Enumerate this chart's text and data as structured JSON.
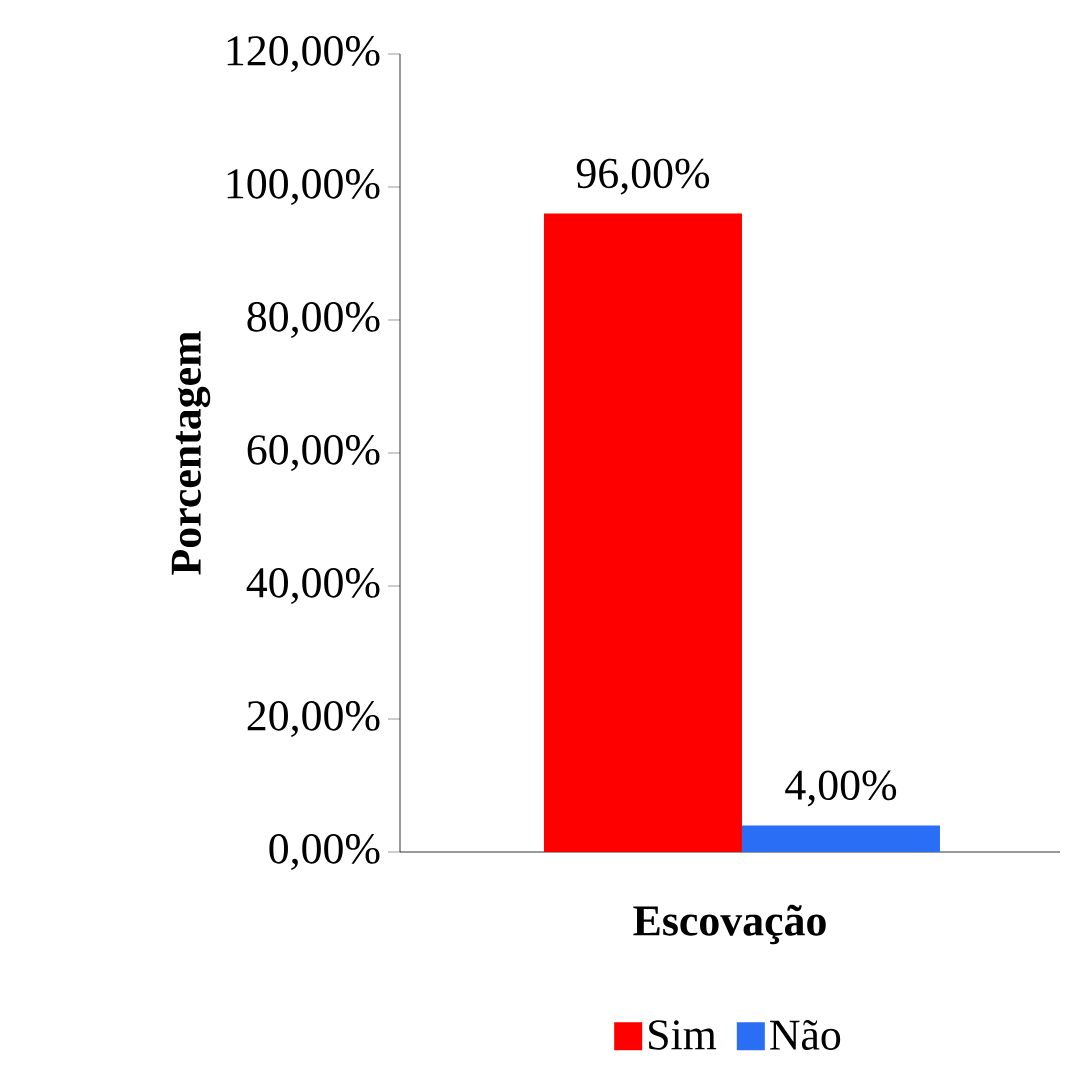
{
  "chart_data": {
    "type": "bar",
    "xlabel": "Escovação",
    "ylabel": "Porcentagem",
    "categories": [
      null
    ],
    "series": [
      {
        "name": "Sim",
        "color": "#ff0000",
        "values": [
          96
        ],
        "value_labels": [
          "96,00%"
        ]
      },
      {
        "name": "Não",
        "color": "#2a6ef5",
        "values": [
          4
        ],
        "value_labels": [
          "4,00%"
        ]
      }
    ],
    "ylim": [
      0,
      120
    ],
    "yticks": [
      {
        "value": 0,
        "label": "0,00%"
      },
      {
        "value": 20,
        "label": "20,00%"
      },
      {
        "value": 40,
        "label": "40,00%"
      },
      {
        "value": 60,
        "label": "60,00%"
      },
      {
        "value": 80,
        "label": "80,00%"
      },
      {
        "value": 100,
        "label": "100,00%"
      },
      {
        "value": 120,
        "label": "120,00%"
      }
    ],
    "grid": false,
    "legend": "bottom"
  }
}
